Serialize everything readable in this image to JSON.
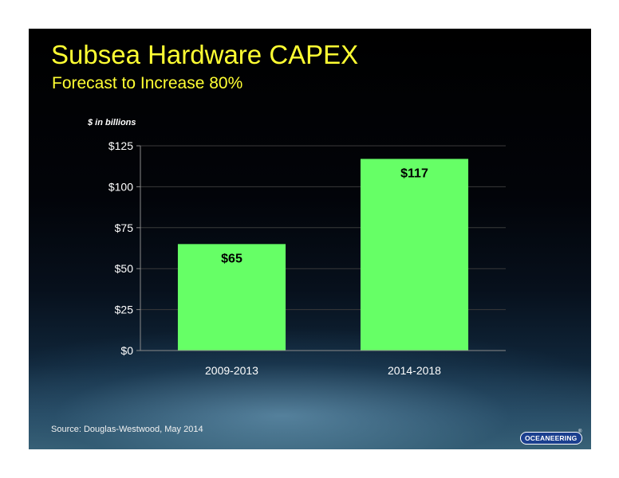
{
  "slide": {
    "title": "Subsea Hardware CAPEX",
    "subtitle": "Forecast to Increase 80%",
    "unit_note": "$ in billions",
    "source": "Source:  Douglas-Westwood, May 2014",
    "logo_text": "OCEANEERING",
    "logo_mark": "®"
  },
  "chart_data": {
    "type": "bar",
    "categories": [
      "2009-2013",
      "2014-2018"
    ],
    "values": [
      65,
      117
    ],
    "data_labels": [
      "$65",
      "$117"
    ],
    "ylim": [
      0,
      125
    ],
    "yticks": [
      0,
      25,
      50,
      75,
      100,
      125
    ],
    "ytick_labels": [
      "$0",
      "$25",
      "$50",
      "$75",
      "$100",
      "$125"
    ],
    "grid": true,
    "bar_color": "#66ff66",
    "title_color": "#ffff33"
  }
}
